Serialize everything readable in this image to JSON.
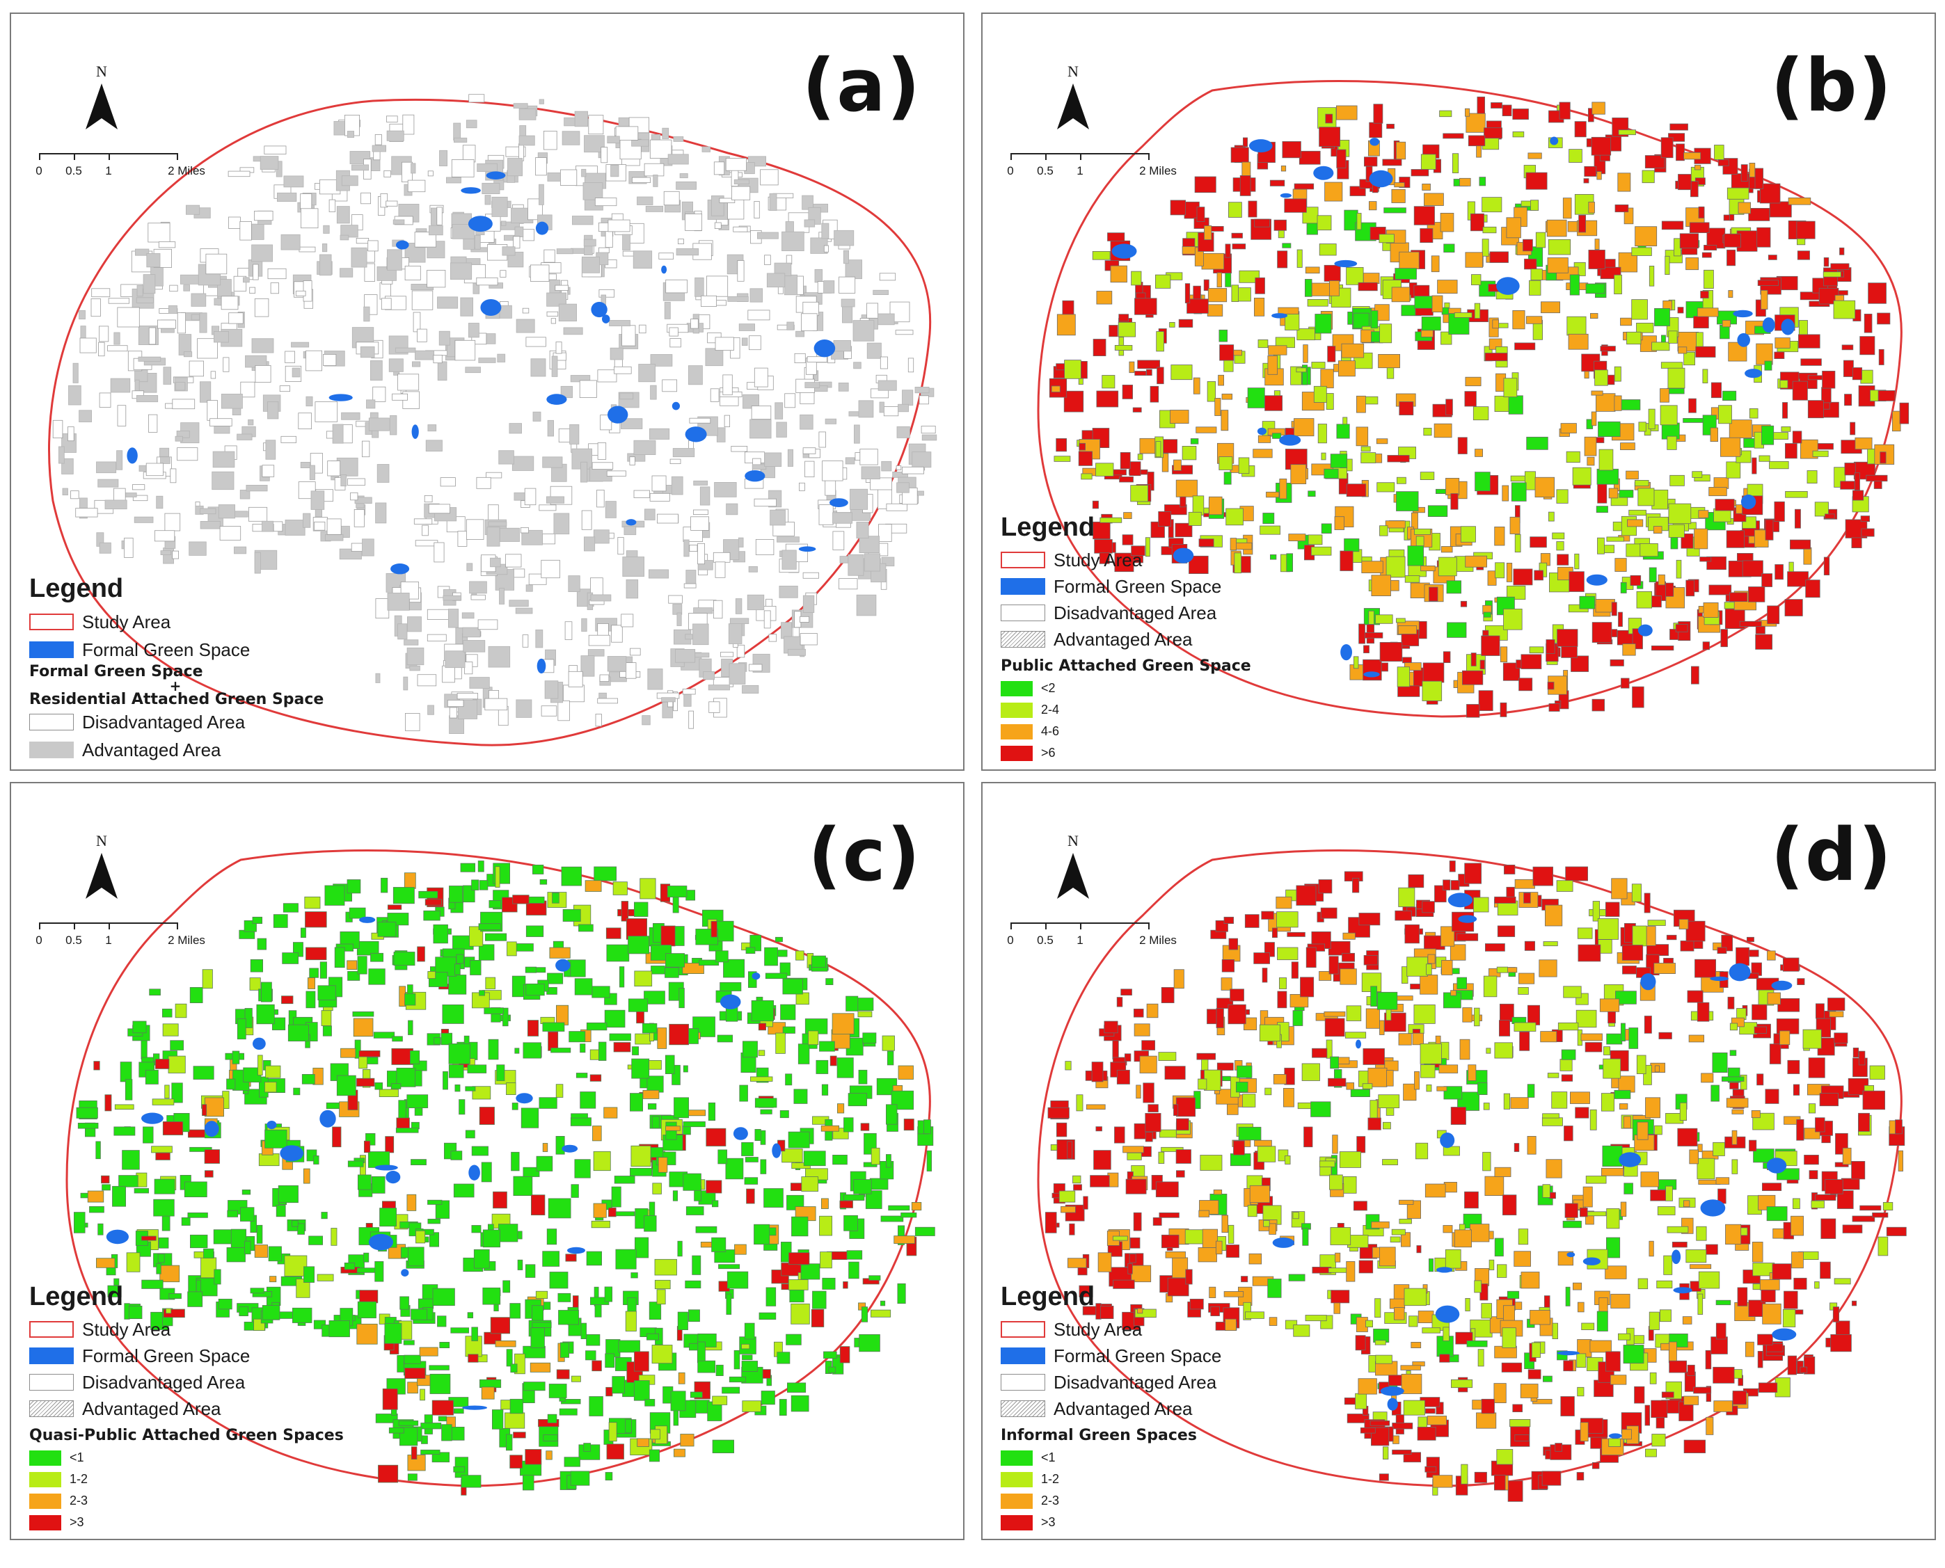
{
  "north_label": "N",
  "scale_labels": [
    "0",
    "0.5",
    "1",
    "2 Miles"
  ],
  "colors": {
    "study_area": "#e03a3a",
    "formal_green": "#1f6fe8",
    "advantaged_gray": "#c9c9c9",
    "class_1": "#22e011",
    "class_2": "#b8ec16",
    "class_3": "#f6a41a",
    "class_4": "#e01212"
  },
  "panels": {
    "a": {
      "letter": "(a)",
      "legend": {
        "title": "Legend",
        "study_area": "Study Area",
        "formal_green": "Formal Green Space",
        "combo_line1": "Formal Green Space",
        "combo_plus": "+",
        "combo_line2": "Residential Attached Green Space",
        "disadvantaged": "Disadvantaged Area",
        "advantaged": "Advantaged Area"
      }
    },
    "b": {
      "letter": "(b)",
      "legend": {
        "title": "Legend",
        "study_area": "Study Area",
        "formal_green": "Formal Green Space",
        "disadvantaged": "Disadvantaged Area",
        "advantaged": "Advantaged Area",
        "class_title": "Public Attached Green Space",
        "classes": [
          "<2",
          "2-4",
          "4-6",
          ">6"
        ]
      }
    },
    "c": {
      "letter": "(c)",
      "legend": {
        "title": "Legend",
        "study_area": "Study Area",
        "formal_green": "Formal Green Space",
        "disadvantaged": "Disadvantaged Area",
        "advantaged": "Advantaged Area",
        "class_title": "Quasi-Public Attached Green Spaces",
        "classes": [
          "<1",
          "1-2",
          "2-3",
          ">3"
        ]
      }
    },
    "d": {
      "letter": "(d)",
      "legend": {
        "title": "Legend",
        "study_area": "Study Area",
        "formal_green": "Formal Green Space",
        "disadvantaged": "Disadvantaged Area",
        "advantaged": "Advantaged Area",
        "class_title": "Informal Green Spaces",
        "classes": [
          "<1",
          "1-2",
          "2-3",
          ">3"
        ]
      }
    }
  }
}
